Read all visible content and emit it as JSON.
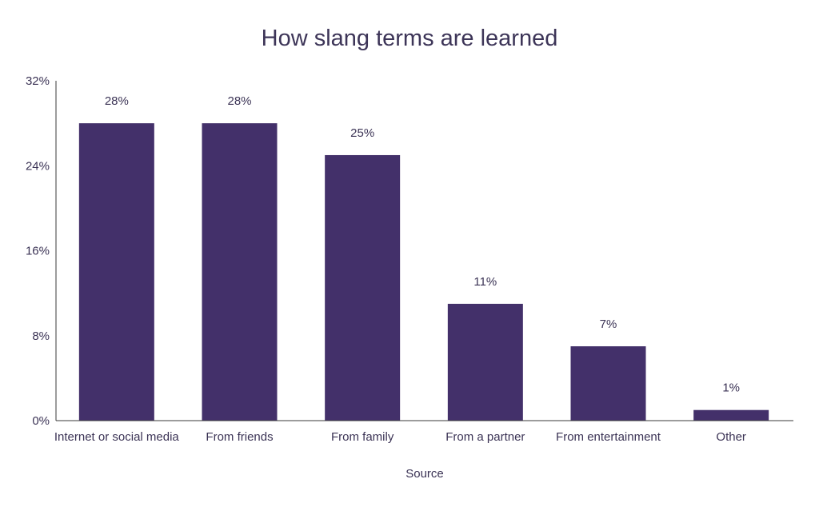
{
  "chart_data": {
    "type": "bar",
    "title": "How slang terms are learned",
    "xlabel": "Source",
    "ylabel": "",
    "categories": [
      "Internet or social media",
      "From friends",
      "From family",
      "From a partner",
      "From entertainment",
      "Other"
    ],
    "values": [
      28,
      28,
      25,
      11,
      7,
      1
    ],
    "value_labels": [
      "28%",
      "28%",
      "25%",
      "11%",
      "7%",
      "1%"
    ],
    "ylim": [
      0,
      32
    ],
    "yticks": [
      0,
      8,
      16,
      24,
      32
    ],
    "ytick_labels": [
      "0%",
      "8%",
      "16%",
      "24%",
      "32%"
    ],
    "grid": false,
    "legend": "none",
    "bar_color": "#43306a"
  }
}
